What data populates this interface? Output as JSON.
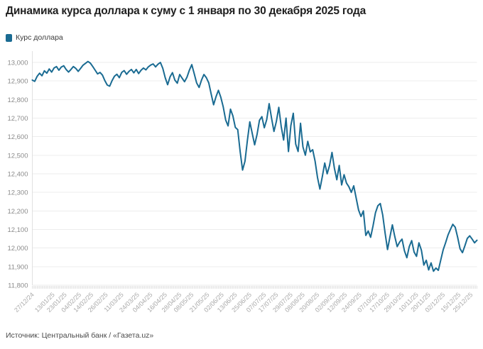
{
  "title": "Динамика курса доллара к суму с 1 января по 30 декабря 2025 года",
  "legend": {
    "label": "Курс доллара"
  },
  "source": "Источник: Центральный банк / «Газета.uz»",
  "colors": {
    "line": "#1a6b92",
    "grid": "#ededed",
    "axis": "#e0e0e0",
    "minor_tick": "#d9d9d9",
    "y_label": "#8b8b8b",
    "x_label": "#a9a9a9",
    "title_text": "#1f1f1f",
    "legend_text": "#3a3a3a",
    "source_text": "#4a4a4a"
  },
  "chart_data": {
    "type": "line",
    "title": "Динамика курса доллара к суму с 1 января по 30 декабря 2025 года",
    "grid": "horizontal-only",
    "legend_position": "top-left",
    "ylim": [
      11800,
      13000
    ],
    "x_range_days": [
      0,
      368
    ],
    "y_ticks": [
      13000,
      12900,
      12800,
      12700,
      12600,
      12500,
      12400,
      12300,
      12200,
      12100,
      12000,
      11900,
      11800
    ],
    "y_tick_labels": [
      "13,000",
      "12,900",
      "12,800",
      "12,700",
      "12,600",
      "12,500",
      "12,400",
      "12,300",
      "12,200",
      "12,100",
      "12,000",
      "11,900",
      "11,800"
    ],
    "x_tick_days": [
      0,
      17,
      27,
      39,
      49,
      61,
      74,
      87,
      98,
      110,
      122,
      132,
      145,
      157,
      168,
      180,
      192,
      202,
      214,
      224,
      236,
      249,
      259,
      271,
      284,
      294,
      306,
      318,
      328,
      340,
      353,
      363
    ],
    "x_tick_labels": [
      "27/12/24",
      "13/01/25",
      "23/01/25",
      "04/02/25",
      "14/02/25",
      "26/02/25",
      "11/03/25",
      "24/03/25",
      "04/04/25",
      "16/04/25",
      "28/04/25",
      "08/05/25",
      "21/05/25",
      "02/06/25",
      "13/06/25",
      "25/06/25",
      "07/07/25",
      "17/07/25",
      "29/07/25",
      "08/08/25",
      "20/08/25",
      "02/09/25",
      "12/09/25",
      "24/09/25",
      "07/10/25",
      "17/10/25",
      "29/10/25",
      "10/11/25",
      "20/11/25",
      "02/12/25",
      "15/12/25",
      "25/12/25"
    ],
    "series": [
      {
        "name": "Курс доллара",
        "color": "#1a6b92",
        "x_start_day": 0,
        "x_step_days": 2,
        "values": [
          12905,
          12898,
          12925,
          12942,
          12928,
          12955,
          12942,
          12965,
          12948,
          12970,
          12978,
          12958,
          12975,
          12982,
          12962,
          12948,
          12962,
          12978,
          12968,
          12952,
          12968,
          12985,
          12995,
          13005,
          12996,
          12978,
          12958,
          12938,
          12946,
          12932,
          12902,
          12878,
          12872,
          12902,
          12926,
          12936,
          12918,
          12946,
          12956,
          12936,
          12952,
          12962,
          12944,
          12962,
          12940,
          12958,
          12970,
          12960,
          12976,
          12986,
          12992,
          12976,
          12990,
          13000,
          12968,
          12918,
          12880,
          12922,
          12945,
          12905,
          12888,
          12935,
          12915,
          12896,
          12920,
          12958,
          12988,
          12940,
          12890,
          12865,
          12905,
          12935,
          12918,
          12890,
          12830,
          12772,
          12815,
          12850,
          12812,
          12760,
          12690,
          12658,
          12748,
          12712,
          12650,
          12638,
          12520,
          12420,
          12468,
          12580,
          12680,
          12618,
          12556,
          12612,
          12688,
          12708,
          12648,
          12692,
          12778,
          12700,
          12628,
          12682,
          12758,
          12655,
          12582,
          12700,
          12520,
          12660,
          12726,
          12560,
          12520,
          12672,
          12545,
          12500,
          12575,
          12518,
          12530,
          12468,
          12380,
          12318,
          12385,
          12458,
          12400,
          12445,
          12515,
          12430,
          12368,
          12445,
          12340,
          12395,
          12350,
          12330,
          12300,
          12335,
          12270,
          12205,
          12170,
          12200,
          12068,
          12092,
          12058,
          12120,
          12190,
          12228,
          12240,
          12178,
          12080,
          11992,
          12060,
          12125,
          12062,
          12008,
          12032,
          12048,
          11985,
          11948,
          12008,
          12040,
          11978,
          11955,
          12028,
          11988,
          11908,
          11934,
          11882,
          11920,
          11875,
          11892,
          11880,
          11935,
          11990,
          12028,
          12070,
          12100,
          12128,
          12112,
          12058,
          11996,
          11975,
          12012,
          12052,
          12066,
          12048,
          12028,
          12042
        ]
      }
    ]
  }
}
